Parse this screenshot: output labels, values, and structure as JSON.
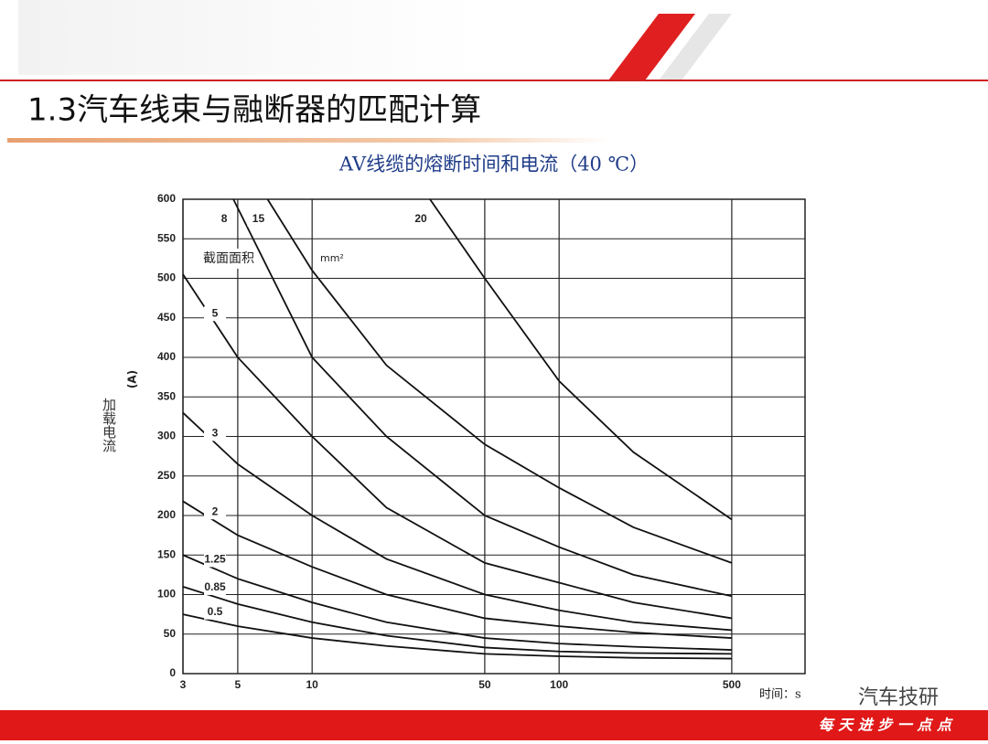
{
  "slide_title": "1.3汽车线束与融断器的匹配计算",
  "footer": "每 天 进 步 一 点 点",
  "watermark": "汽车技研",
  "chart_data": {
    "type": "line",
    "title": "AV线缆的熔断时间和电流（40 ℃）",
    "ylabel": "加载电流",
    "yunit": "(A)",
    "xlabel": "时间：s",
    "legend_title": "截面面积",
    "legend_unit": "mm²",
    "xscale": "log",
    "xlim": [
      3,
      990
    ],
    "xticks": [
      3,
      5,
      10,
      50,
      100,
      500
    ],
    "ylim": [
      0,
      600
    ],
    "yticks": [
      0,
      50,
      100,
      150,
      200,
      250,
      300,
      350,
      400,
      450,
      500,
      550,
      600
    ],
    "grid": true,
    "series": [
      {
        "name": "0.5",
        "color": "#111111",
        "x": [
          3,
          5,
          10,
          20,
          50,
          100,
          200,
          500
        ],
        "values": [
          75,
          60,
          45,
          35,
          25,
          22,
          20,
          19
        ]
      },
      {
        "name": "0.85",
        "color": "#111111",
        "x": [
          3,
          5,
          10,
          20,
          50,
          100,
          200,
          500
        ],
        "values": [
          110,
          88,
          65,
          48,
          33,
          28,
          26,
          25
        ]
      },
      {
        "name": "1.25",
        "color": "#111111",
        "x": [
          3,
          5,
          10,
          20,
          50,
          100,
          200,
          500
        ],
        "values": [
          150,
          120,
          90,
          65,
          45,
          38,
          34,
          30
        ]
      },
      {
        "name": "2",
        "color": "#111111",
        "x": [
          3,
          5,
          10,
          20,
          50,
          100,
          200,
          500
        ],
        "values": [
          218,
          175,
          135,
          100,
          70,
          60,
          52,
          45
        ]
      },
      {
        "name": "3",
        "color": "#111111",
        "x": [
          3,
          5,
          10,
          20,
          50,
          100,
          200,
          500
        ],
        "values": [
          330,
          265,
          200,
          145,
          100,
          80,
          65,
          55
        ]
      },
      {
        "name": "5",
        "color": "#111111",
        "x": [
          3,
          5,
          10,
          20,
          50,
          100,
          200,
          500
        ],
        "values": [
          505,
          400,
          300,
          210,
          140,
          115,
          90,
          70
        ]
      },
      {
        "name": "8",
        "color": "#111111",
        "x": [
          4.8,
          10,
          20,
          50,
          100,
          200,
          500
        ],
        "values": [
          600,
          400,
          300,
          200,
          160,
          125,
          98
        ]
      },
      {
        "name": "15",
        "color": "#111111",
        "x": [
          6.6,
          10,
          20,
          50,
          100,
          200,
          500
        ],
        "values": [
          600,
          510,
          390,
          290,
          235,
          185,
          140
        ]
      },
      {
        "name": "20",
        "color": "#111111",
        "x": [
          30,
          50,
          100,
          200,
          500
        ],
        "values": [
          600,
          500,
          370,
          280,
          195
        ]
      }
    ]
  }
}
